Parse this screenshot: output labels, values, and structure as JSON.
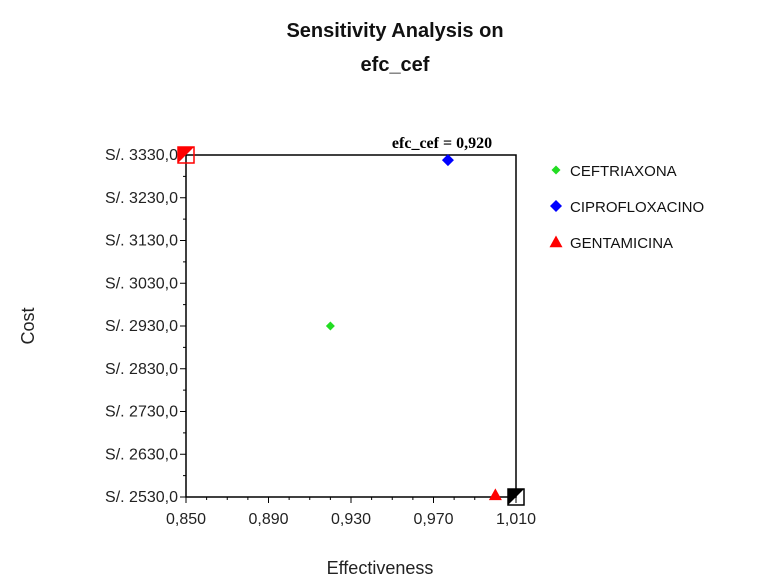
{
  "chart_data": {
    "type": "scatter",
    "title": "Sensitivity Analysis on",
    "subtitle": "efc_cef",
    "xlabel": "Effectiveness",
    "ylabel": "Cost",
    "annotation": "efc_cef = 0,920",
    "xlim": [
      0.85,
      1.01
    ],
    "ylim": [
      2530,
      3330
    ],
    "x_ticks": [
      0.85,
      0.89,
      0.93,
      0.97,
      1.01
    ],
    "x_tick_labels": [
      "0,850",
      "0,890",
      "0,930",
      "0,970",
      "1,010"
    ],
    "y_ticks": [
      3330,
      3230,
      3130,
      3030,
      2930,
      2830,
      2730,
      2630,
      2530
    ],
    "y_tick_labels": [
      "S/. 3330,0",
      "S/. 3230,0",
      "S/. 3130,0",
      "S/. 3030,0",
      "S/. 2930,0",
      "S/. 2830,0",
      "S/. 2730,0",
      "S/. 2630,0",
      "S/. 2530,0"
    ],
    "grid": false,
    "legend_position": "right",
    "series": [
      {
        "name": "CEFTRIAXONA",
        "marker": "diamond-small",
        "color": "#22dd22",
        "points": [
          {
            "x": 0.92,
            "y": 2930
          }
        ]
      },
      {
        "name": "CIPROFLOXACINO",
        "marker": "diamond",
        "color": "#0000ff",
        "points": [
          {
            "x": 0.977,
            "y": 3318
          }
        ]
      },
      {
        "name": "GENTAMICINA",
        "marker": "triangle",
        "color": "#ff0000",
        "points": [
          {
            "x": 1.0,
            "y": 2535
          }
        ]
      }
    ],
    "corner_markers": [
      {
        "x": 0.85,
        "y": 3330,
        "color": "#ff0000",
        "style": "half-filled-square"
      },
      {
        "x": 1.01,
        "y": 2530,
        "color": "#000000",
        "style": "half-filled-square"
      }
    ]
  }
}
